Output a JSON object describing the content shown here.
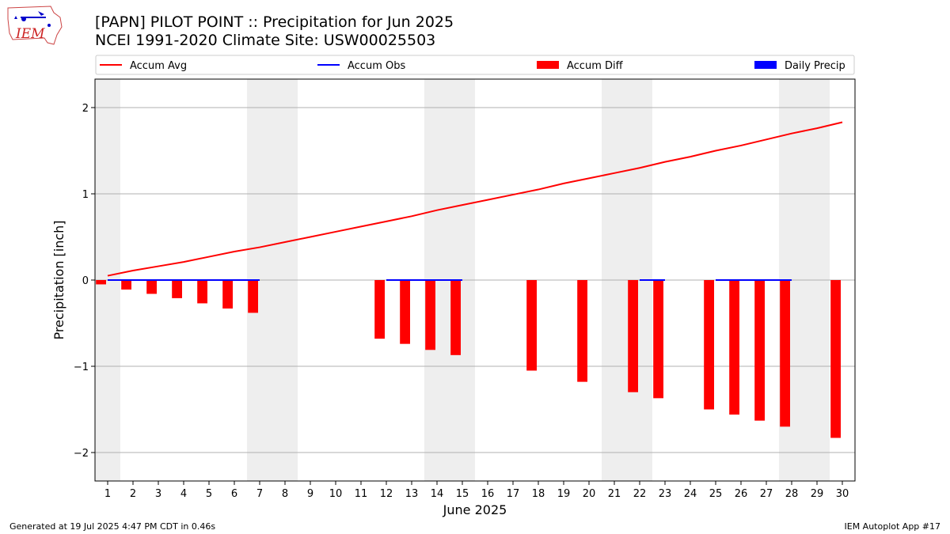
{
  "header": {
    "title_line1": "[PAPN] PILOT POINT :: Precipitation for Jun 2025",
    "title_line2": "NCEI 1991-2020 Climate Site: USW00025503",
    "logo_text": "IEM"
  },
  "footer": {
    "left": "Generated at 19 Jul 2025 4:47 PM CDT in 0.46s",
    "right": "IEM Autoplot App #17"
  },
  "colors": {
    "accum_avg": "#ff0000",
    "accum_obs": "#0000ff",
    "accum_diff": "#ff0000",
    "daily_precip": "#0000ff",
    "weekend_shade": "#eeeeee",
    "grid": "#b0b0b0"
  },
  "chart_data": {
    "type": "bar",
    "xlabel": "June 2025",
    "ylabel": "Precipitation [inch]",
    "xlim": [
      0.5,
      30.5
    ],
    "ylim": [
      -2.33,
      2.33
    ],
    "yticks": [
      -2,
      -1,
      0,
      1,
      2
    ],
    "ytick_labels": [
      "−2",
      "−1",
      "0",
      "1",
      "2"
    ],
    "days": [
      1,
      2,
      3,
      4,
      5,
      6,
      7,
      8,
      9,
      10,
      11,
      12,
      13,
      14,
      15,
      16,
      17,
      18,
      19,
      20,
      21,
      22,
      23,
      24,
      25,
      26,
      27,
      28,
      29,
      30
    ],
    "grid": "horizontal",
    "legend_position": "top",
    "legend": [
      "Accum Avg",
      "Accum Obs",
      "Accum Diff",
      "Daily Precip"
    ],
    "weekend_days": [
      1,
      7,
      8,
      14,
      15,
      21,
      22,
      28,
      29
    ],
    "series": [
      {
        "name": "Accum Avg",
        "kind": "line",
        "values": [
          0.05,
          0.11,
          0.16,
          0.21,
          0.27,
          0.33,
          0.38,
          0.44,
          0.5,
          0.56,
          0.62,
          0.68,
          0.74,
          0.81,
          0.87,
          0.93,
          0.99,
          1.05,
          1.12,
          1.18,
          1.24,
          1.3,
          1.37,
          1.43,
          1.5,
          1.56,
          1.63,
          1.7,
          1.76,
          1.83
        ]
      },
      {
        "name": "Accum Obs",
        "kind": "segments",
        "days": [
          1,
          2,
          3,
          4,
          5,
          6,
          7,
          12,
          13,
          14,
          15,
          22,
          23,
          25,
          26,
          27,
          28
        ],
        "values": [
          0,
          0,
          0,
          0,
          0,
          0,
          0,
          0,
          0,
          0,
          0,
          0,
          0,
          0,
          0,
          0,
          0
        ]
      },
      {
        "name": "Accum Diff",
        "kind": "bar",
        "days": [
          1,
          2,
          3,
          4,
          5,
          6,
          7,
          12,
          13,
          14,
          15,
          18,
          20,
          22,
          23,
          25,
          26,
          27,
          28,
          30
        ],
        "values": [
          -0.05,
          -0.11,
          -0.16,
          -0.21,
          -0.27,
          -0.33,
          -0.38,
          -0.68,
          -0.74,
          -0.81,
          -0.87,
          -1.05,
          -1.18,
          -1.3,
          -1.37,
          -1.5,
          -1.56,
          -1.63,
          -1.7,
          -1.83
        ]
      },
      {
        "name": "Daily Precip",
        "kind": "bar",
        "days": [],
        "values": []
      }
    ]
  }
}
